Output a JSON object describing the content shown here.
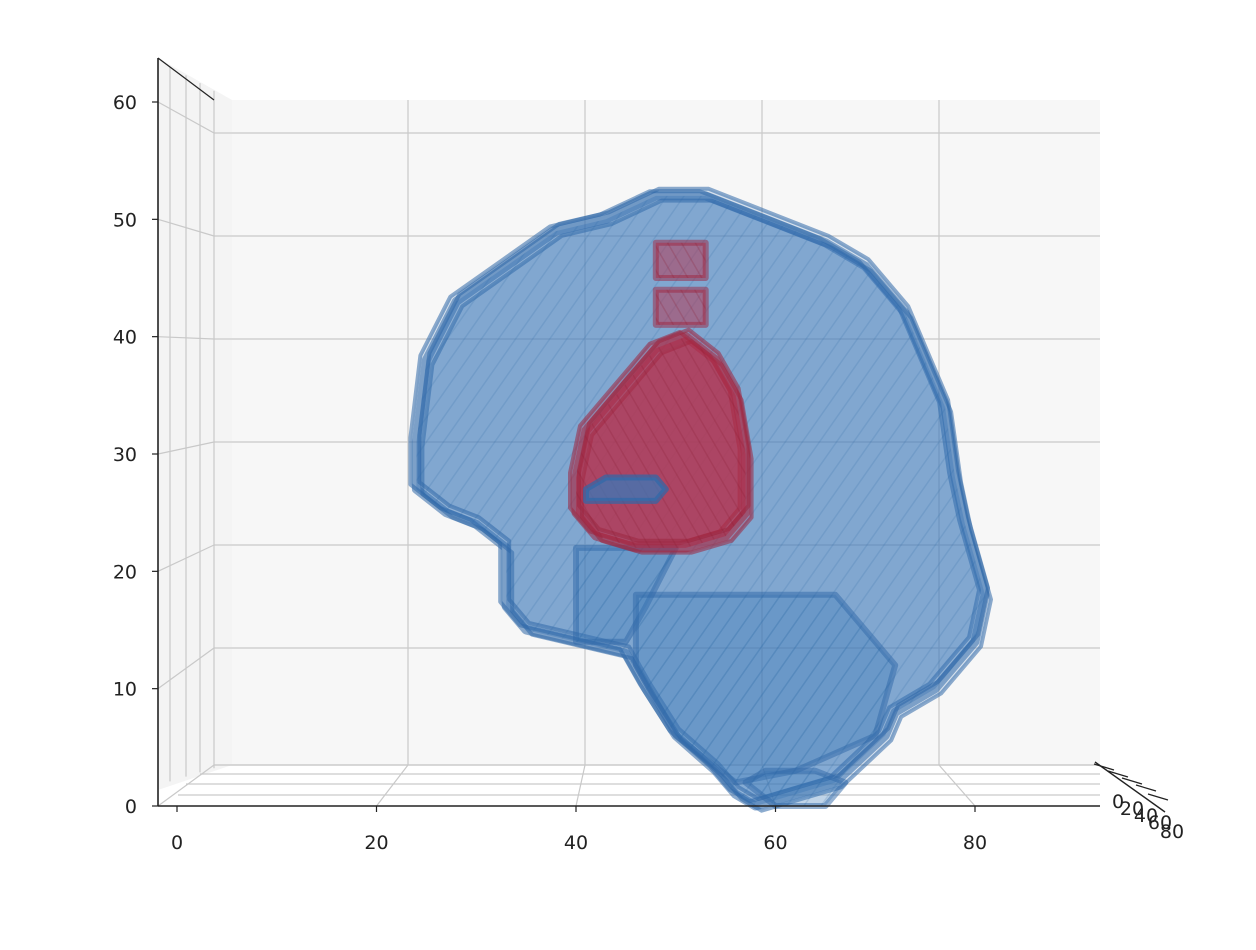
{
  "colors": {
    "background": "#ffffff",
    "pane": "#f7f7f7",
    "grid": "#c9c9c9",
    "axis": "#222222",
    "mesh_blue": "#3b78b8",
    "mesh_blue_edge": "#2f68a8",
    "mesh_red": "#b8304a"
  },
  "chart_data": {
    "type": "3d-voxel",
    "title": "",
    "xlabel": "",
    "ylabel": "",
    "zlabel": "",
    "xlim": [
      0,
      92
    ],
    "ylim": [
      0,
      80
    ],
    "zlim": [
      0,
      62
    ],
    "x_ticks": [
      "0",
      "20",
      "40",
      "60",
      "80"
    ],
    "y_ticks": [
      "0",
      "20",
      "40",
      "60",
      "80"
    ],
    "z_ticks": [
      "0",
      "10",
      "20",
      "30",
      "40",
      "50",
      "60"
    ],
    "grid": true,
    "legend": "none",
    "view": "side (elevation ~0)",
    "series": [
      {
        "color": "#3b78b8",
        "alpha": 0.35,
        "outline": [
          [
            24,
            31
          ],
          [
            25,
            38
          ],
          [
            28,
            43
          ],
          [
            33,
            46
          ],
          [
            38,
            49
          ],
          [
            43,
            50
          ],
          [
            48,
            52
          ],
          [
            53,
            52
          ],
          [
            59,
            50
          ],
          [
            65,
            48
          ],
          [
            69,
            46
          ],
          [
            73,
            42
          ],
          [
            75,
            38
          ],
          [
            77,
            34
          ],
          [
            78,
            28
          ],
          [
            79,
            24
          ],
          [
            81,
            18
          ],
          [
            80,
            14
          ],
          [
            76,
            10
          ],
          [
            72,
            8
          ],
          [
            71,
            6
          ],
          [
            66,
            2
          ],
          [
            62,
            1
          ],
          [
            58,
            0
          ],
          [
            56,
            1
          ],
          [
            54,
            3
          ],
          [
            50,
            6
          ],
          [
            47,
            10
          ],
          [
            45,
            13
          ],
          [
            40,
            14
          ],
          [
            35,
            15
          ],
          [
            33,
            17
          ],
          [
            33,
            22
          ],
          [
            30,
            24
          ],
          [
            27,
            25
          ],
          [
            24,
            27
          ]
        ],
        "inner_blobs": [
          [
            [
              40,
              22
            ],
            [
              40,
              14
            ],
            [
              45,
              14
            ],
            [
              47,
              17
            ],
            [
              50,
              22
            ]
          ],
          [
            [
              46,
              18
            ],
            [
              66,
              18
            ],
            [
              72,
              12
            ],
            [
              70,
              6
            ],
            [
              62,
              3
            ],
            [
              56,
              2
            ],
            [
              50,
              6
            ],
            [
              46,
              12
            ]
          ],
          [
            [
              57,
              2
            ],
            [
              60,
              0
            ],
            [
              65,
              0
            ],
            [
              67,
              2
            ],
            [
              64,
              3
            ],
            [
              59,
              3
            ]
          ]
        ]
      },
      {
        "color": "#b8304a",
        "alpha": 0.55,
        "outline": [
          [
            40,
            28
          ],
          [
            41,
            32
          ],
          [
            44,
            35
          ],
          [
            48,
            39
          ],
          [
            51,
            40
          ],
          [
            54,
            38
          ],
          [
            56,
            35
          ],
          [
            57,
            30
          ],
          [
            57,
            25
          ],
          [
            55,
            23
          ],
          [
            51,
            22
          ],
          [
            46,
            22
          ],
          [
            42,
            23
          ],
          [
            40,
            25
          ]
        ],
        "inner_blobs": [
          [
            [
              48,
              41
            ],
            [
              53,
              41
            ],
            [
              53,
              44
            ],
            [
              48,
              44
            ]
          ],
          [
            [
              48,
              45
            ],
            [
              53,
              45
            ],
            [
              53,
              48
            ],
            [
              48,
              48
            ]
          ]
        ],
        "inner_core": [
          [
            41,
            27
          ],
          [
            43,
            28
          ],
          [
            48,
            28
          ],
          [
            49,
            27
          ],
          [
            48,
            26
          ],
          [
            43,
            26
          ],
          [
            41,
            26
          ]
        ]
      }
    ]
  }
}
